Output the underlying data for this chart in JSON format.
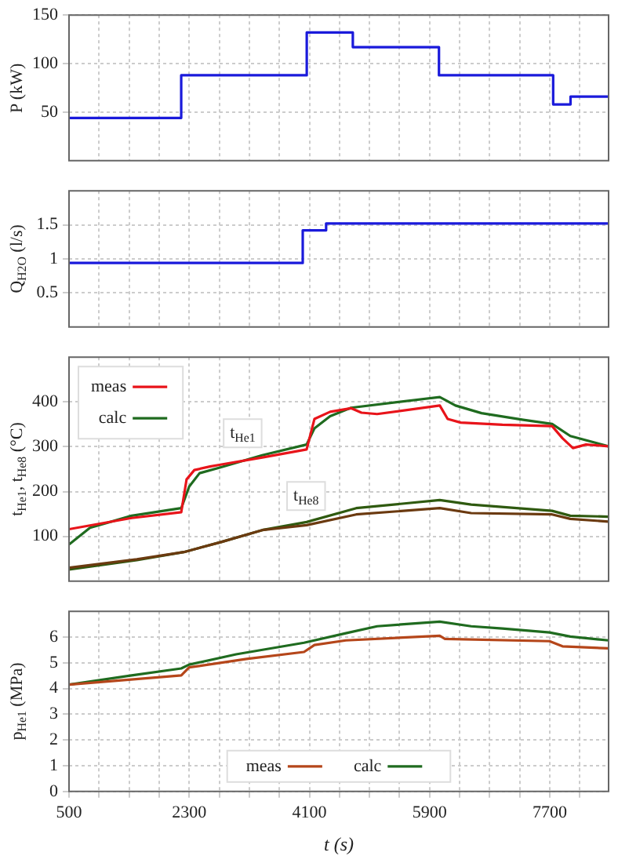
{
  "chart_data": [
    {
      "type": "step",
      "ylabel": "P (kW)",
      "x": [
        500,
        2180,
        4060,
        4750,
        6040,
        7750,
        8010,
        8580
      ],
      "series": [
        {
          "color": "#1a1adb",
          "values": [
            44,
            88,
            132,
            117,
            88,
            58,
            66,
            66
          ]
        }
      ],
      "xlim": [
        500,
        8580
      ],
      "xticks": [
        500,
        {
          "value": 950,
          "label": null
        },
        {
          "value": 1400,
          "label": null
        },
        {
          "value": 1850,
          "label": null
        },
        2300,
        {
          "value": 2750,
          "label": null
        },
        {
          "value": 3200,
          "label": null
        },
        {
          "value": 3650,
          "label": null
        },
        4100,
        {
          "value": 4550,
          "label": null
        },
        {
          "value": 5000,
          "label": null
        },
        {
          "value": 5450,
          "label": null
        },
        5900,
        {
          "value": 6350,
          "label": null
        },
        {
          "value": 6800,
          "label": null
        },
        {
          "value": 7250,
          "label": null
        },
        7700,
        {
          "value": 8150,
          "label": null
        }
      ],
      "ylim": [
        0,
        150
      ],
      "yticks": [
        50,
        100,
        150
      ],
      "grid": true,
      "tick_labels": "y",
      "legend": false
    },
    {
      "type": "step",
      "ylabel": "Q$_{H2O}$ (l/s)",
      "x": [
        500,
        4000,
        4350,
        8580
      ],
      "series": [
        {
          "color": "#1a1adb",
          "values": [
            0.94,
            1.42,
            1.52,
            1.52
          ]
        }
      ],
      "xlim": [
        500,
        8580
      ],
      "xticks": [
        500,
        {
          "value": 950,
          "label": null
        },
        {
          "value": 1400,
          "label": null
        },
        {
          "value": 1850,
          "label": null
        },
        2300,
        {
          "value": 2750,
          "label": null
        },
        {
          "value": 3200,
          "label": null
        },
        {
          "value": 3650,
          "label": null
        },
        4100,
        {
          "value": 4550,
          "label": null
        },
        {
          "value": 5000,
          "label": null
        },
        {
          "value": 5450,
          "label": null
        },
        5900,
        {
          "value": 6350,
          "label": null
        },
        {
          "value": 6800,
          "label": null
        },
        {
          "value": 7250,
          "label": null
        },
        7700,
        {
          "value": 8150,
          "label": null
        }
      ],
      "ylim": [
        0,
        2
      ],
      "yticks": [
        0.5,
        1,
        1.5
      ],
      "grid": true,
      "tick_labels": "y",
      "legend": false
    },
    {
      "type": "line",
      "ylabel": "t$_{He1}$, t$_{He8}$ (°C)",
      "series": [
        {
          "name": "meas",
          "color": "#e8141a",
          "x": [
            500,
            1438,
            2181,
            2260,
            2377,
            2611,
            2768,
            3393,
            4058,
            4175,
            4410,
            4723,
            4879,
            5114,
            6052,
            6170,
            6365,
            6991,
            7734,
            7890,
            8046,
            8242,
            8578
          ],
          "values": [
            116,
            141,
            154,
            227,
            248,
            256,
            260,
            276,
            294,
            362,
            378,
            386,
            376,
            373,
            392,
            362,
            354,
            349,
            346,
            319,
            297,
            305,
            301
          ]
        },
        {
          "name": "calc",
          "color": "#1f6b1f",
          "x": [
            500,
            813,
            1438,
            2181,
            2299,
            2455,
            2768,
            3393,
            4058,
            4175,
            4410,
            4723,
            6052,
            6287,
            6678,
            7303,
            7734,
            8007,
            8578
          ],
          "values": [
            82,
            119,
            146,
            163,
            211,
            241,
            254,
            281,
            305,
            341,
            368,
            387,
            411,
            392,
            375,
            360,
            351,
            324,
            301
          ]
        },
        {
          "color": "#6b3a10",
          "x": [
            500,
            1516,
            2220,
            2768,
            3393,
            4058,
            4801,
            6052,
            6522,
            7734,
            8007,
            8578
          ],
          "values": [
            30,
            49,
            65,
            87,
            114,
            125,
            149,
            163,
            152,
            149,
            139,
            133
          ]
        },
        {
          "color": "#2f5a10",
          "x": [
            500,
            1516,
            2220,
            2768,
            3393,
            4058,
            4801,
            6052,
            6522,
            7734,
            8007,
            8578
          ],
          "values": [
            26,
            47,
            65,
            87,
            114,
            132,
            163,
            181,
            171,
            157,
            146,
            144
          ]
        }
      ],
      "annotations": [
        {
          "text": "t$_{He1}$",
          "x": 3100,
          "y": 330
        },
        {
          "text": "t$_{He8}$",
          "x": 4050,
          "y": 190
        }
      ],
      "xlim": [
        500,
        8580
      ],
      "xticks": [
        500,
        {
          "value": 950,
          "label": null
        },
        {
          "value": 1400,
          "label": null
        },
        {
          "value": 1850,
          "label": null
        },
        2300,
        {
          "value": 2750,
          "label": null
        },
        {
          "value": 3200,
          "label": null
        },
        {
          "value": 3650,
          "label": null
        },
        4100,
        {
          "value": 4550,
          "label": null
        },
        {
          "value": 5000,
          "label": null
        },
        {
          "value": 5450,
          "label": null
        },
        5900,
        {
          "value": 6350,
          "label": null
        },
        {
          "value": 6800,
          "label": null
        },
        {
          "value": 7250,
          "label": null
        },
        7700,
        {
          "value": 8150,
          "label": null
        }
      ],
      "ylim": [
        0,
        500
      ],
      "yticks": [
        100,
        200,
        300,
        400
      ],
      "grid": true,
      "tick_labels": "y",
      "legend": "top left"
    },
    {
      "type": "line",
      "xlabel": "t (s)",
      "ylabel": "p$_{He1}$ (MPa)",
      "series": [
        {
          "name": "meas",
          "color": "#b5461a",
          "x": [
            500,
            2181,
            2299,
            3159,
            4019,
            4175,
            4645,
            6052,
            6130,
            7695,
            7890,
            8578
          ],
          "values": [
            4.15,
            4.51,
            4.82,
            5.15,
            5.42,
            5.69,
            5.87,
            6.05,
            5.93,
            5.84,
            5.64,
            5.56
          ]
        },
        {
          "name": "calc",
          "color": "#1f6b1f",
          "x": [
            500,
            1438,
            2181,
            2299,
            3002,
            4019,
            4645,
            5114,
            6052,
            6522,
            6991,
            7695,
            8007,
            8578
          ],
          "values": [
            4.15,
            4.51,
            4.78,
            4.93,
            5.33,
            5.78,
            6.15,
            6.42,
            6.6,
            6.42,
            6.33,
            6.18,
            6.02,
            5.87
          ]
        }
      ],
      "xlim": [
        500,
        8580
      ],
      "xticks": [
        500,
        {
          "value": 950,
          "label": null
        },
        {
          "value": 1400,
          "label": null
        },
        {
          "value": 1850,
          "label": null
        },
        2300,
        {
          "value": 2750,
          "label": null
        },
        {
          "value": 3200,
          "label": null
        },
        {
          "value": 3650,
          "label": null
        },
        4100,
        {
          "value": 4550,
          "label": null
        },
        {
          "value": 5000,
          "label": null
        },
        {
          "value": 5450,
          "label": null
        },
        5900,
        {
          "value": 6350,
          "label": null
        },
        {
          "value": 6800,
          "label": null
        },
        {
          "value": 7250,
          "label": null
        },
        7700,
        {
          "value": 8150,
          "label": null
        }
      ],
      "ylim": [
        0,
        7
      ],
      "yticks": [
        0,
        1,
        2,
        3,
        4,
        5,
        6
      ],
      "grid": true,
      "legend": "bottom"
    }
  ]
}
